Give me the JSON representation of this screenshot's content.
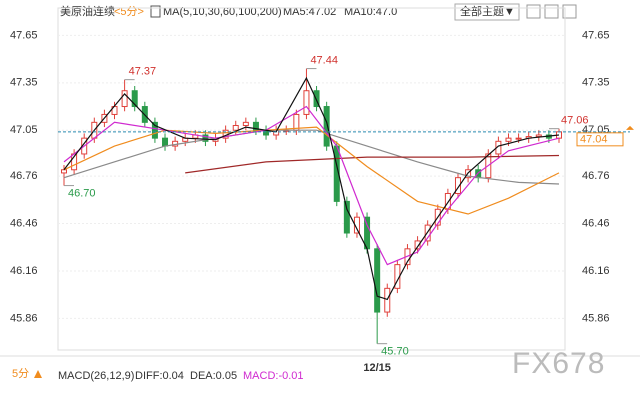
{
  "header": {
    "symbol": "美原油连续",
    "period": "<5分>",
    "ma_params": "MA(5,10,30,60,100,200)",
    "ma5": "MA5:47.02",
    "ma10": "MA10:47.0",
    "theme": "全部主题▼"
  },
  "footer": {
    "period": "5分",
    "macd_params": "MACD(26,12,9)",
    "diff": "DIFF:0.04",
    "dea": "DEA:0.05",
    "macd": "MACD:-0.01"
  },
  "watermark": "FX678",
  "chart_data": {
    "type": "candlestick",
    "ylim": [
      45.66,
      47.76
    ],
    "yticks": [
      47.65,
      47.35,
      47.05,
      46.76,
      46.46,
      46.16,
      45.86
    ],
    "grid": true,
    "up_color": "#e0403a",
    "down_color": "#2a9a4a",
    "categories": [
      null,
      null,
      null,
      null,
      null,
      null,
      null,
      null,
      null,
      null,
      null,
      null,
      null,
      null,
      null,
      null,
      null,
      null,
      null,
      null,
      null,
      null,
      null,
      null,
      null,
      null,
      null,
      null,
      null,
      null,
      null,
      "12/15",
      null,
      null,
      null,
      null,
      null,
      null,
      null,
      null,
      null,
      null,
      null,
      null,
      null,
      null,
      null,
      null,
      null,
      null
    ],
    "open": [
      46.78,
      46.8,
      46.9,
      47.0,
      47.1,
      47.15,
      47.2,
      47.3,
      47.2,
      47.1,
      47.0,
      46.95,
      46.98,
      47.0,
      47.02,
      46.98,
      47.0,
      47.05,
      47.08,
      47.1,
      47.05,
      47.02,
      47.05,
      47.05,
      47.15,
      47.3,
      47.2,
      46.95,
      46.6,
      46.4,
      46.5,
      46.3,
      45.9,
      46.05,
      46.2,
      46.3,
      46.35,
      46.45,
      46.55,
      46.65,
      46.75,
      46.8,
      46.75,
      46.9,
      46.98,
      47.0,
      47.0,
      47.01,
      47.02,
      47.0
    ],
    "high": [
      46.83,
      46.93,
      47.03,
      47.13,
      47.18,
      47.23,
      47.37,
      47.33,
      47.23,
      47.13,
      47.03,
      47.01,
      47.03,
      47.05,
      47.05,
      47.03,
      47.08,
      47.11,
      47.13,
      47.13,
      47.08,
      47.08,
      47.08,
      47.18,
      47.44,
      47.33,
      47.23,
      46.98,
      46.63,
      46.53,
      46.53,
      46.33,
      46.08,
      46.23,
      46.33,
      46.38,
      46.48,
      46.58,
      46.68,
      46.78,
      46.83,
      46.83,
      46.93,
      47.01,
      47.03,
      47.03,
      47.04,
      47.05,
      47.05,
      47.06
    ],
    "low": [
      46.7,
      46.77,
      46.87,
      46.97,
      47.07,
      47.12,
      47.17,
      47.17,
      47.07,
      46.97,
      46.92,
      46.92,
      46.95,
      46.97,
      46.95,
      46.95,
      46.97,
      47.02,
      47.05,
      47.02,
      46.99,
      46.99,
      47.02,
      47.02,
      47.12,
      47.17,
      46.92,
      46.57,
      46.37,
      46.37,
      46.27,
      45.7,
      45.87,
      46.02,
      46.17,
      46.27,
      46.32,
      46.42,
      46.52,
      46.62,
      46.72,
      46.72,
      46.72,
      46.87,
      46.95,
      46.97,
      46.97,
      46.98,
      46.97,
      46.97
    ],
    "close": [
      46.8,
      46.9,
      47.0,
      47.1,
      47.15,
      47.2,
      47.3,
      47.2,
      47.1,
      47.0,
      46.95,
      46.98,
      47.0,
      47.02,
      46.98,
      47.0,
      47.05,
      47.08,
      47.1,
      47.05,
      47.02,
      47.05,
      47.05,
      47.15,
      47.3,
      47.2,
      46.95,
      46.6,
      46.4,
      46.5,
      46.3,
      45.9,
      46.05,
      46.2,
      46.3,
      46.35,
      46.45,
      46.55,
      46.65,
      46.75,
      46.8,
      46.75,
      46.9,
      46.98,
      47.0,
      47.0,
      47.01,
      47.02,
      47.0,
      47.04
    ],
    "annotations": [
      {
        "value": 47.37,
        "label": "47.37",
        "at": "high",
        "color": "#d0312d"
      },
      {
        "value": 47.44,
        "label": "47.44",
        "at": "high",
        "color": "#d0312d"
      },
      {
        "value": 46.7,
        "label": "46.70",
        "at": "low",
        "color": "#2a9a4a"
      },
      {
        "value": 45.7,
        "label": "45.70",
        "at": "low",
        "color": "#2a9a4a"
      },
      {
        "value": 47.06,
        "label": "47.06",
        "at": "high",
        "color": "#d0312d"
      }
    ],
    "lines": [
      {
        "color": "#8a8a8a",
        "x": [
          0,
          10,
          20,
          25,
          30,
          35,
          40,
          45,
          49
        ],
        "values": [
          46.75,
          46.95,
          47.05,
          47.05,
          46.95,
          46.85,
          46.76,
          46.72,
          46.71
        ]
      },
      {
        "color": "#a02828",
        "x": [
          12,
          20,
          30,
          40,
          49
        ],
        "values": [
          46.78,
          46.85,
          46.88,
          46.88,
          46.89
        ]
      },
      {
        "color": "#f08c1e",
        "x": [
          0,
          5,
          10,
          15,
          20,
          25,
          30,
          35,
          40,
          44,
          49
        ],
        "values": [
          46.8,
          46.95,
          47.05,
          47.03,
          47.05,
          47.07,
          46.82,
          46.6,
          46.52,
          46.62,
          46.78
        ]
      },
      {
        "color": "#d02ad0",
        "x": [
          0,
          5,
          10,
          15,
          20,
          24,
          27,
          30,
          32,
          35,
          38,
          41,
          44,
          49
        ],
        "values": [
          46.85,
          47.1,
          47.05,
          47.0,
          47.05,
          47.2,
          46.95,
          46.45,
          46.2,
          46.28,
          46.55,
          46.78,
          46.92,
          47.0
        ]
      },
      {
        "color": "#111111",
        "x": [
          0,
          3,
          6,
          9,
          12,
          15,
          18,
          21,
          24,
          26,
          28,
          30,
          31,
          32,
          34,
          37,
          40,
          43,
          46,
          49
        ],
        "values": [
          46.8,
          47.05,
          47.28,
          47.08,
          47.0,
          46.99,
          47.07,
          47.04,
          47.38,
          47.1,
          46.55,
          46.3,
          46.0,
          45.98,
          46.22,
          46.5,
          46.78,
          46.95,
          47.0,
          47.02
        ]
      }
    ]
  }
}
